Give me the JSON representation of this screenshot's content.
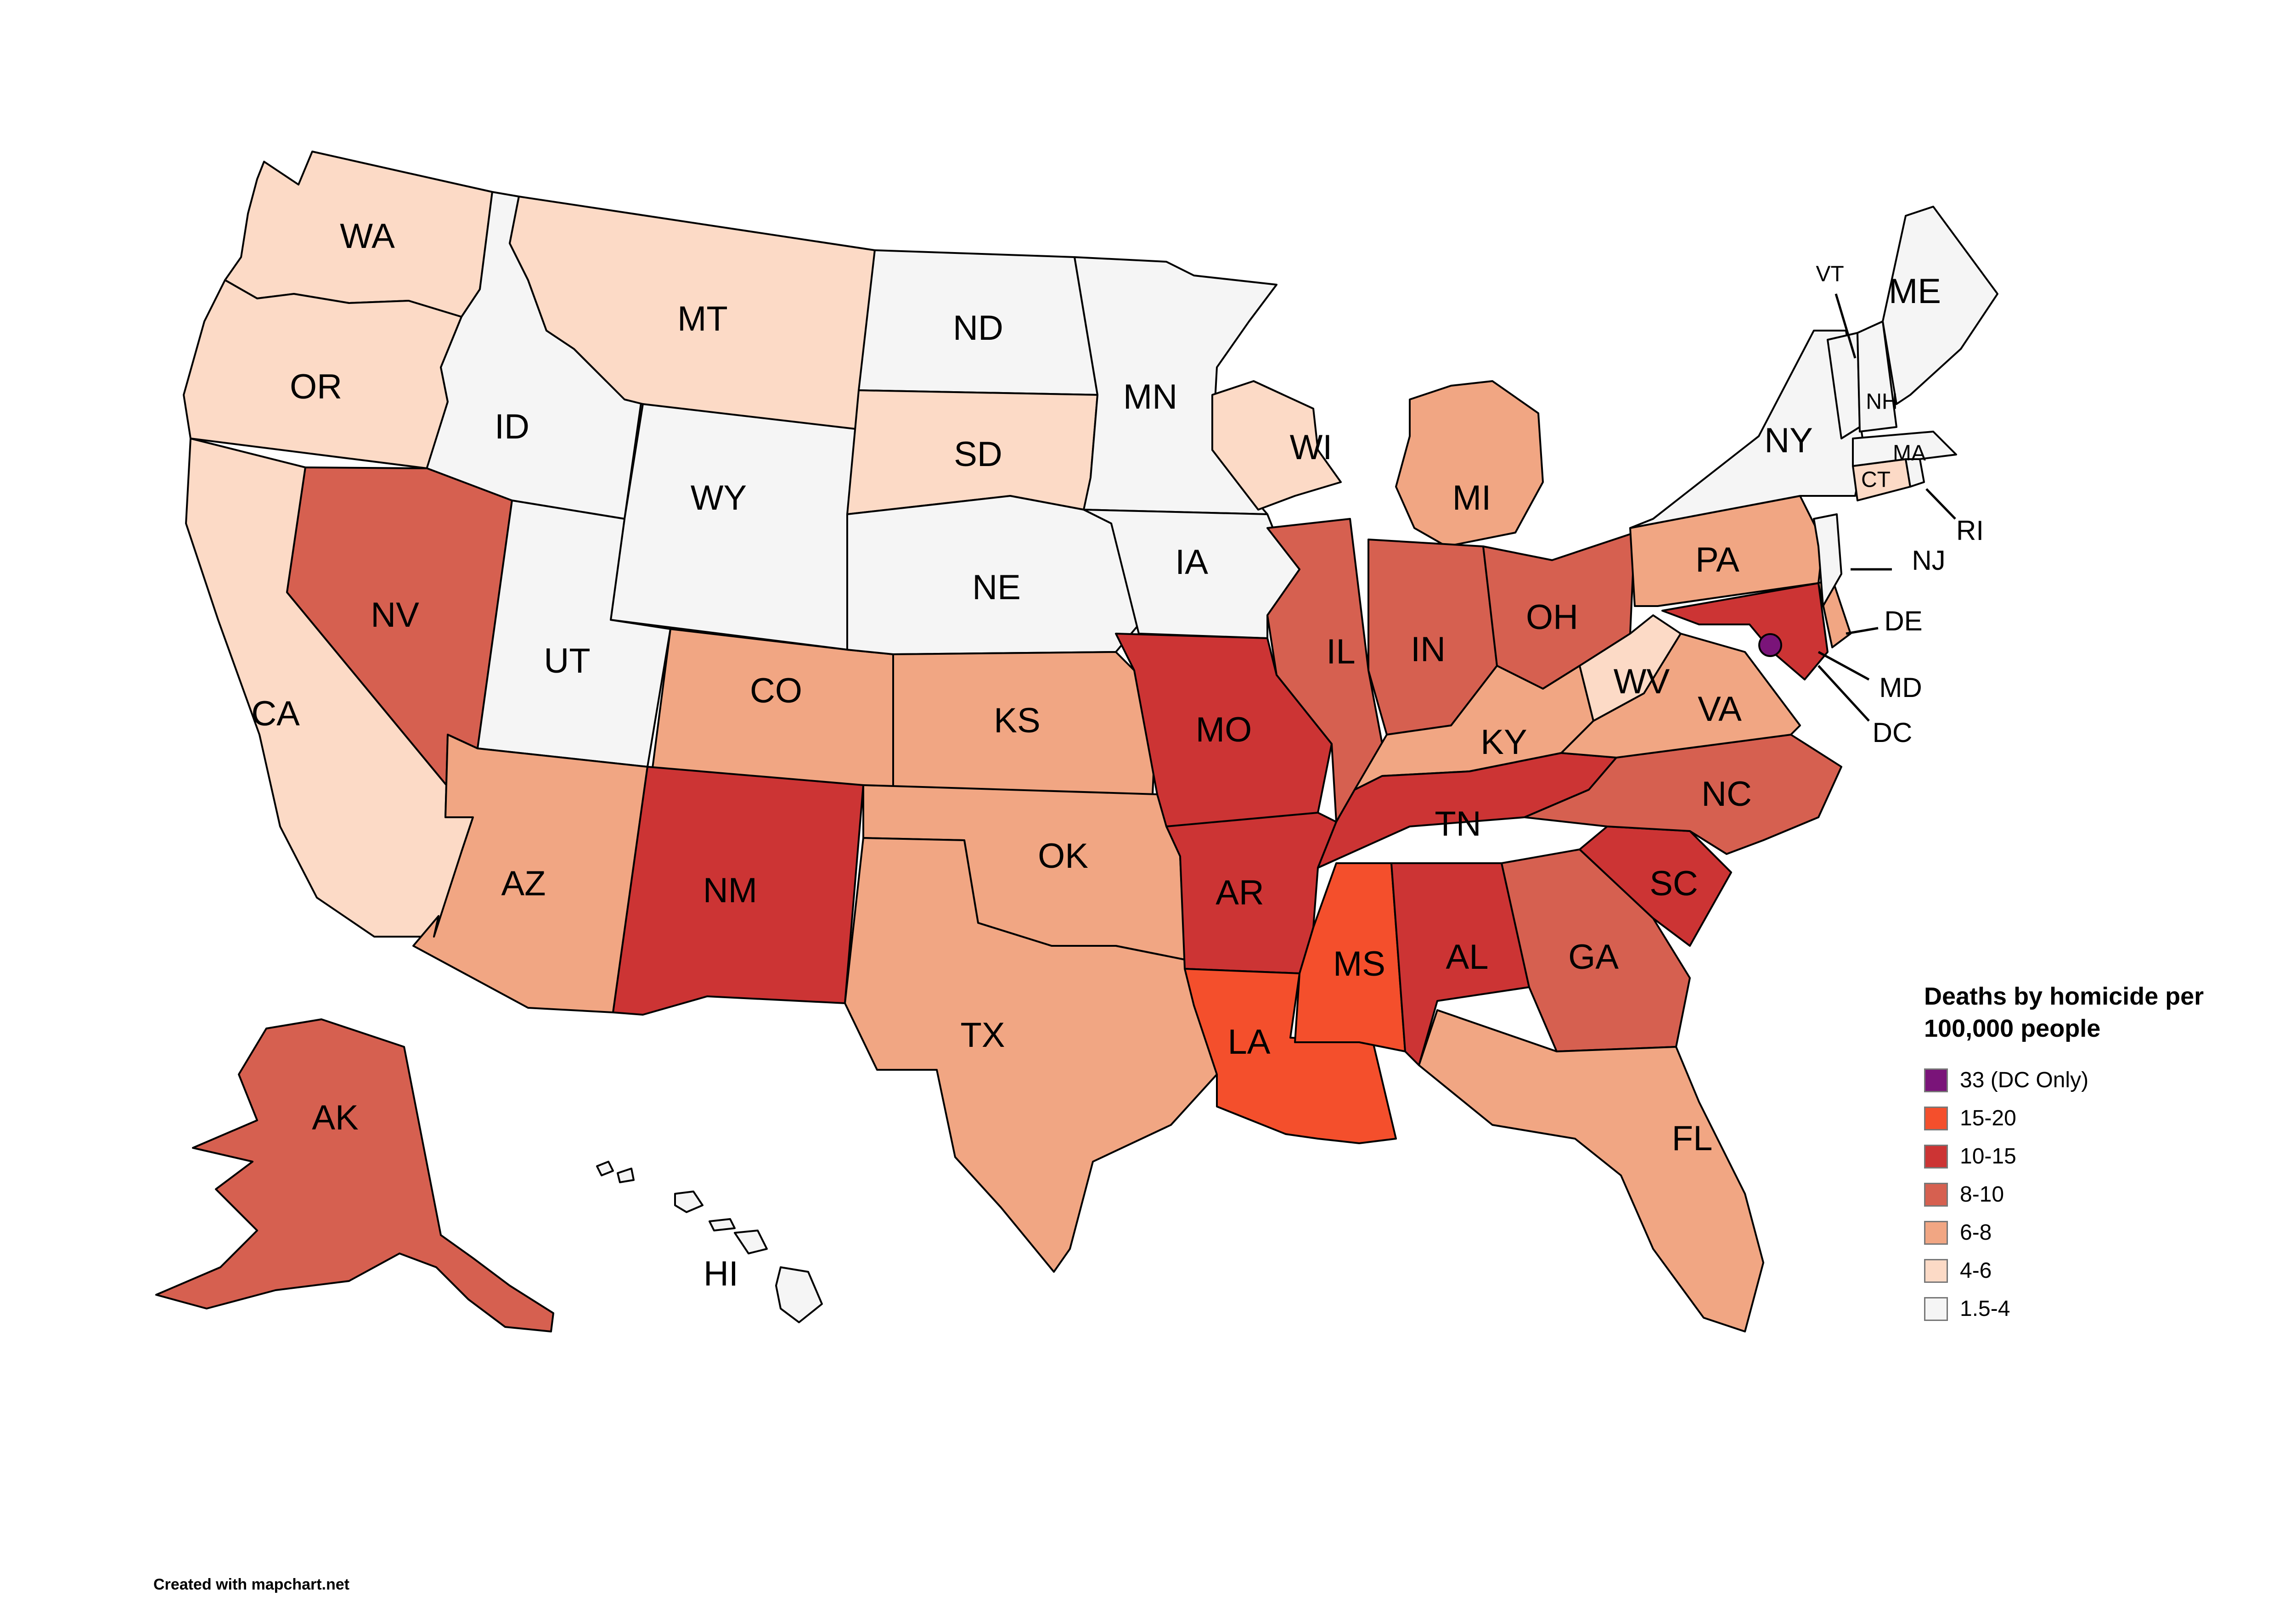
{
  "legend": {
    "title_line1": "Deaths by homicide per",
    "title_line2": "100,000 people",
    "items": [
      {
        "label": "33 (DC Only)",
        "color": "#7a1479"
      },
      {
        "label": "15-20",
        "color": "#f44f2c"
      },
      {
        "label": "10-15",
        "color": "#cc3434"
      },
      {
        "label": "8-10",
        "color": "#d66050"
      },
      {
        "label": "6-8",
        "color": "#f1a683"
      },
      {
        "label": "4-6",
        "color": "#fcdac6"
      },
      {
        "label": "1.5-4",
        "color": "#f5f5f5"
      }
    ]
  },
  "credit": "Created with mapchart.net",
  "states": [
    {
      "code": "WA",
      "label": "WA",
      "category": "4-6"
    },
    {
      "code": "OR",
      "label": "OR",
      "category": "4-6"
    },
    {
      "code": "CA",
      "label": "CA",
      "category": "4-6"
    },
    {
      "code": "ID",
      "label": "ID",
      "category": "1.5-4"
    },
    {
      "code": "NV",
      "label": "NV",
      "category": "8-10"
    },
    {
      "code": "MT",
      "label": "MT",
      "category": "4-6"
    },
    {
      "code": "WY",
      "label": "WY",
      "category": "1.5-4"
    },
    {
      "code": "UT",
      "label": "UT",
      "category": "1.5-4"
    },
    {
      "code": "AZ",
      "label": "AZ",
      "category": "6-8"
    },
    {
      "code": "CO",
      "label": "CO",
      "category": "6-8"
    },
    {
      "code": "NM",
      "label": "NM",
      "category": "10-15"
    },
    {
      "code": "ND",
      "label": "ND",
      "category": "1.5-4"
    },
    {
      "code": "SD",
      "label": "SD",
      "category": "4-6"
    },
    {
      "code": "NE",
      "label": "NE",
      "category": "1.5-4"
    },
    {
      "code": "KS",
      "label": "KS",
      "category": "6-8"
    },
    {
      "code": "OK",
      "label": "OK",
      "category": "6-8"
    },
    {
      "code": "TX",
      "label": "TX",
      "category": "6-8"
    },
    {
      "code": "MN",
      "label": "MN",
      "category": "1.5-4"
    },
    {
      "code": "IA",
      "label": "IA",
      "category": "1.5-4"
    },
    {
      "code": "MO",
      "label": "MO",
      "category": "10-15"
    },
    {
      "code": "AR",
      "label": "AR",
      "category": "10-15"
    },
    {
      "code": "LA",
      "label": "LA",
      "category": "15-20"
    },
    {
      "code": "WI",
      "label": "WI",
      "category": "4-6"
    },
    {
      "code": "IL",
      "label": "IL",
      "category": "8-10"
    },
    {
      "code": "MI",
      "label": "MI",
      "category": "6-8"
    },
    {
      "code": "IN",
      "label": "IN",
      "category": "8-10"
    },
    {
      "code": "OH",
      "label": "OH",
      "category": "8-10"
    },
    {
      "code": "KY",
      "label": "KY",
      "category": "6-8"
    },
    {
      "code": "TN",
      "label": "TN",
      "category": "10-15"
    },
    {
      "code": "MS",
      "label": "MS",
      "category": "15-20"
    },
    {
      "code": "AL",
      "label": "AL",
      "category": "10-15"
    },
    {
      "code": "GA",
      "label": "GA",
      "category": "8-10"
    },
    {
      "code": "FL",
      "label": "FL",
      "category": "6-8"
    },
    {
      "code": "SC",
      "label": "SC",
      "category": "10-15"
    },
    {
      "code": "NC",
      "label": "NC",
      "category": "8-10"
    },
    {
      "code": "VA",
      "label": "VA",
      "category": "6-8"
    },
    {
      "code": "WV",
      "label": "WV",
      "category": "4-6"
    },
    {
      "code": "PA",
      "label": "PA",
      "category": "6-8"
    },
    {
      "code": "NY",
      "label": "NY",
      "category": "1.5-4"
    },
    {
      "code": "MD",
      "label": "MD",
      "category": "10-15"
    },
    {
      "code": "DE",
      "label": "DE",
      "category": "6-8"
    },
    {
      "code": "NJ",
      "label": "NJ",
      "category": "1.5-4"
    },
    {
      "code": "CT",
      "label": "CT",
      "category": "4-6"
    },
    {
      "code": "RI",
      "label": "RI",
      "category": "1.5-4"
    },
    {
      "code": "MA",
      "label": "MA",
      "category": "1.5-4"
    },
    {
      "code": "VT",
      "label": "VT",
      "category": "1.5-4"
    },
    {
      "code": "NH",
      "label": "NH",
      "category": "1.5-4"
    },
    {
      "code": "ME",
      "label": "ME",
      "category": "1.5-4"
    },
    {
      "code": "AK",
      "label": "AK",
      "category": "8-10"
    },
    {
      "code": "HI",
      "label": "HI",
      "category": "1.5-4"
    },
    {
      "code": "DC",
      "label": "DC",
      "category": "33 (DC Only)"
    }
  ]
}
